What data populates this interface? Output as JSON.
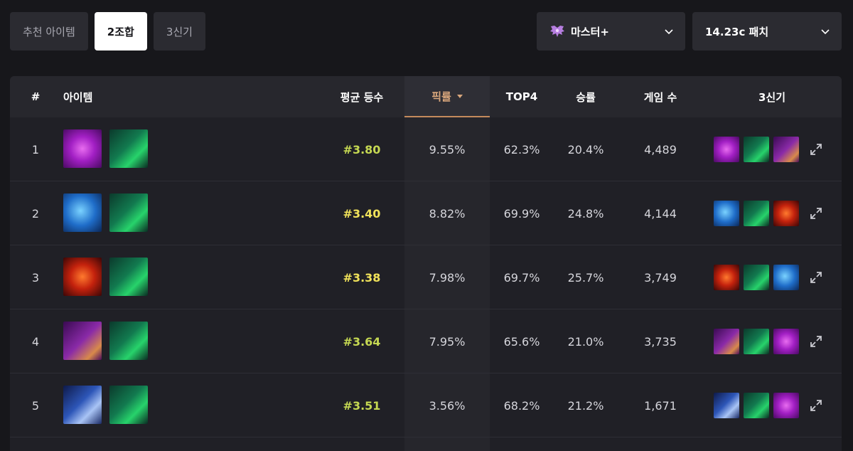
{
  "tabs": [
    {
      "label": "추천 아이템",
      "active": false
    },
    {
      "label": "2조합",
      "active": true
    },
    {
      "label": "3신기",
      "active": false
    }
  ],
  "filters": {
    "tier": {
      "label": "마스터+",
      "icon": "master-wings-icon"
    },
    "patch": {
      "label": "14.23c 패치"
    }
  },
  "table": {
    "headers": {
      "num": "#",
      "item": "아이템",
      "avg_rank": "평균 등수",
      "pick_rate": "픽률",
      "top4": "TOP4",
      "win_rate": "승률",
      "games": "게임 수",
      "trio": "3신기"
    },
    "sorted_by": "pick_rate",
    "rows": [
      {
        "num": "1",
        "items": [
          "gauntlet",
          "dragon"
        ],
        "avg_rank": "#3.80",
        "pick_rate": "9.55%",
        "top4": "62.3%",
        "win_rate": "20.4%",
        "games": "4,489",
        "trio": [
          "gauntlet",
          "dragon",
          "purple-blade"
        ]
      },
      {
        "num": "2",
        "items": [
          "blue",
          "dragon"
        ],
        "avg_rank": "#3.40",
        "pick_rate": "8.82%",
        "top4": "69.9%",
        "win_rate": "24.8%",
        "games": "4,144",
        "trio": [
          "blue",
          "dragon",
          "red"
        ]
      },
      {
        "num": "3",
        "items": [
          "red",
          "dragon"
        ],
        "avg_rank": "#3.38",
        "pick_rate": "7.98%",
        "top4": "69.7%",
        "win_rate": "25.7%",
        "games": "3,749",
        "trio": [
          "red",
          "dragon",
          "blue"
        ]
      },
      {
        "num": "4",
        "items": [
          "purple-blade",
          "dragon"
        ],
        "avg_rank": "#3.64",
        "pick_rate": "7.95%",
        "top4": "65.6%",
        "win_rate": "21.0%",
        "games": "3,735",
        "trio": [
          "purple-blade",
          "dragon",
          "gauntlet"
        ]
      },
      {
        "num": "5",
        "items": [
          "navy-blade",
          "dragon"
        ],
        "avg_rank": "#3.51",
        "pick_rate": "3.56%",
        "top4": "68.2%",
        "win_rate": "21.2%",
        "games": "1,671",
        "trio": [
          "navy-blade",
          "dragon",
          "gauntlet"
        ]
      }
    ]
  },
  "colors": {
    "accent_sort": "#d9a77c",
    "rank_green": "#c5d852",
    "rank_yellow": "#f0e25a"
  }
}
